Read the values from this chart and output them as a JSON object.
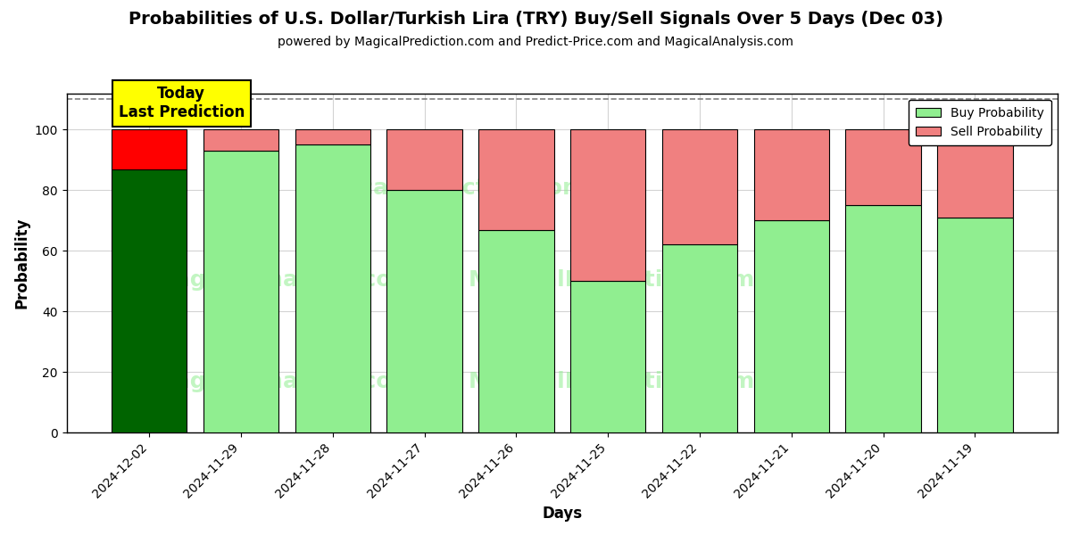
{
  "title": "Probabilities of U.S. Dollar/Turkish Lira (TRY) Buy/Sell Signals Over 5 Days (Dec 03)",
  "subtitle": "powered by MagicalPrediction.com and Predict-Price.com and MagicalAnalysis.com",
  "xlabel": "Days",
  "ylabel": "Probability",
  "dates": [
    "2024-12-02",
    "2024-11-29",
    "2024-11-28",
    "2024-11-27",
    "2024-11-26",
    "2024-11-25",
    "2024-11-22",
    "2024-11-21",
    "2024-11-20",
    "2024-11-19"
  ],
  "buy_values": [
    87,
    93,
    95,
    80,
    67,
    50,
    62,
    70,
    75,
    71
  ],
  "sell_values": [
    13,
    7,
    5,
    20,
    33,
    50,
    38,
    30,
    25,
    29
  ],
  "today_buy_color": "#006400",
  "today_sell_color": "#FF0000",
  "buy_color": "#90EE90",
  "sell_color": "#F08080",
  "bar_edge_color": "#000000",
  "today_annotation_bg": "#FFFF00",
  "today_annotation_text": "Today\nLast Prediction",
  "ylim": [
    0,
    112
  ],
  "yticks": [
    0,
    20,
    40,
    60,
    80,
    100
  ],
  "dashed_line_y": 110,
  "watermark_color": "#90EE90",
  "legend_labels": [
    "Buy Probability",
    "Sell Probability"
  ],
  "legend_colors": [
    "#90EE90",
    "#F08080"
  ],
  "bar_width": 0.82,
  "title_fontsize": 14,
  "subtitle_fontsize": 10,
  "axis_label_fontsize": 12,
  "tick_fontsize": 10
}
